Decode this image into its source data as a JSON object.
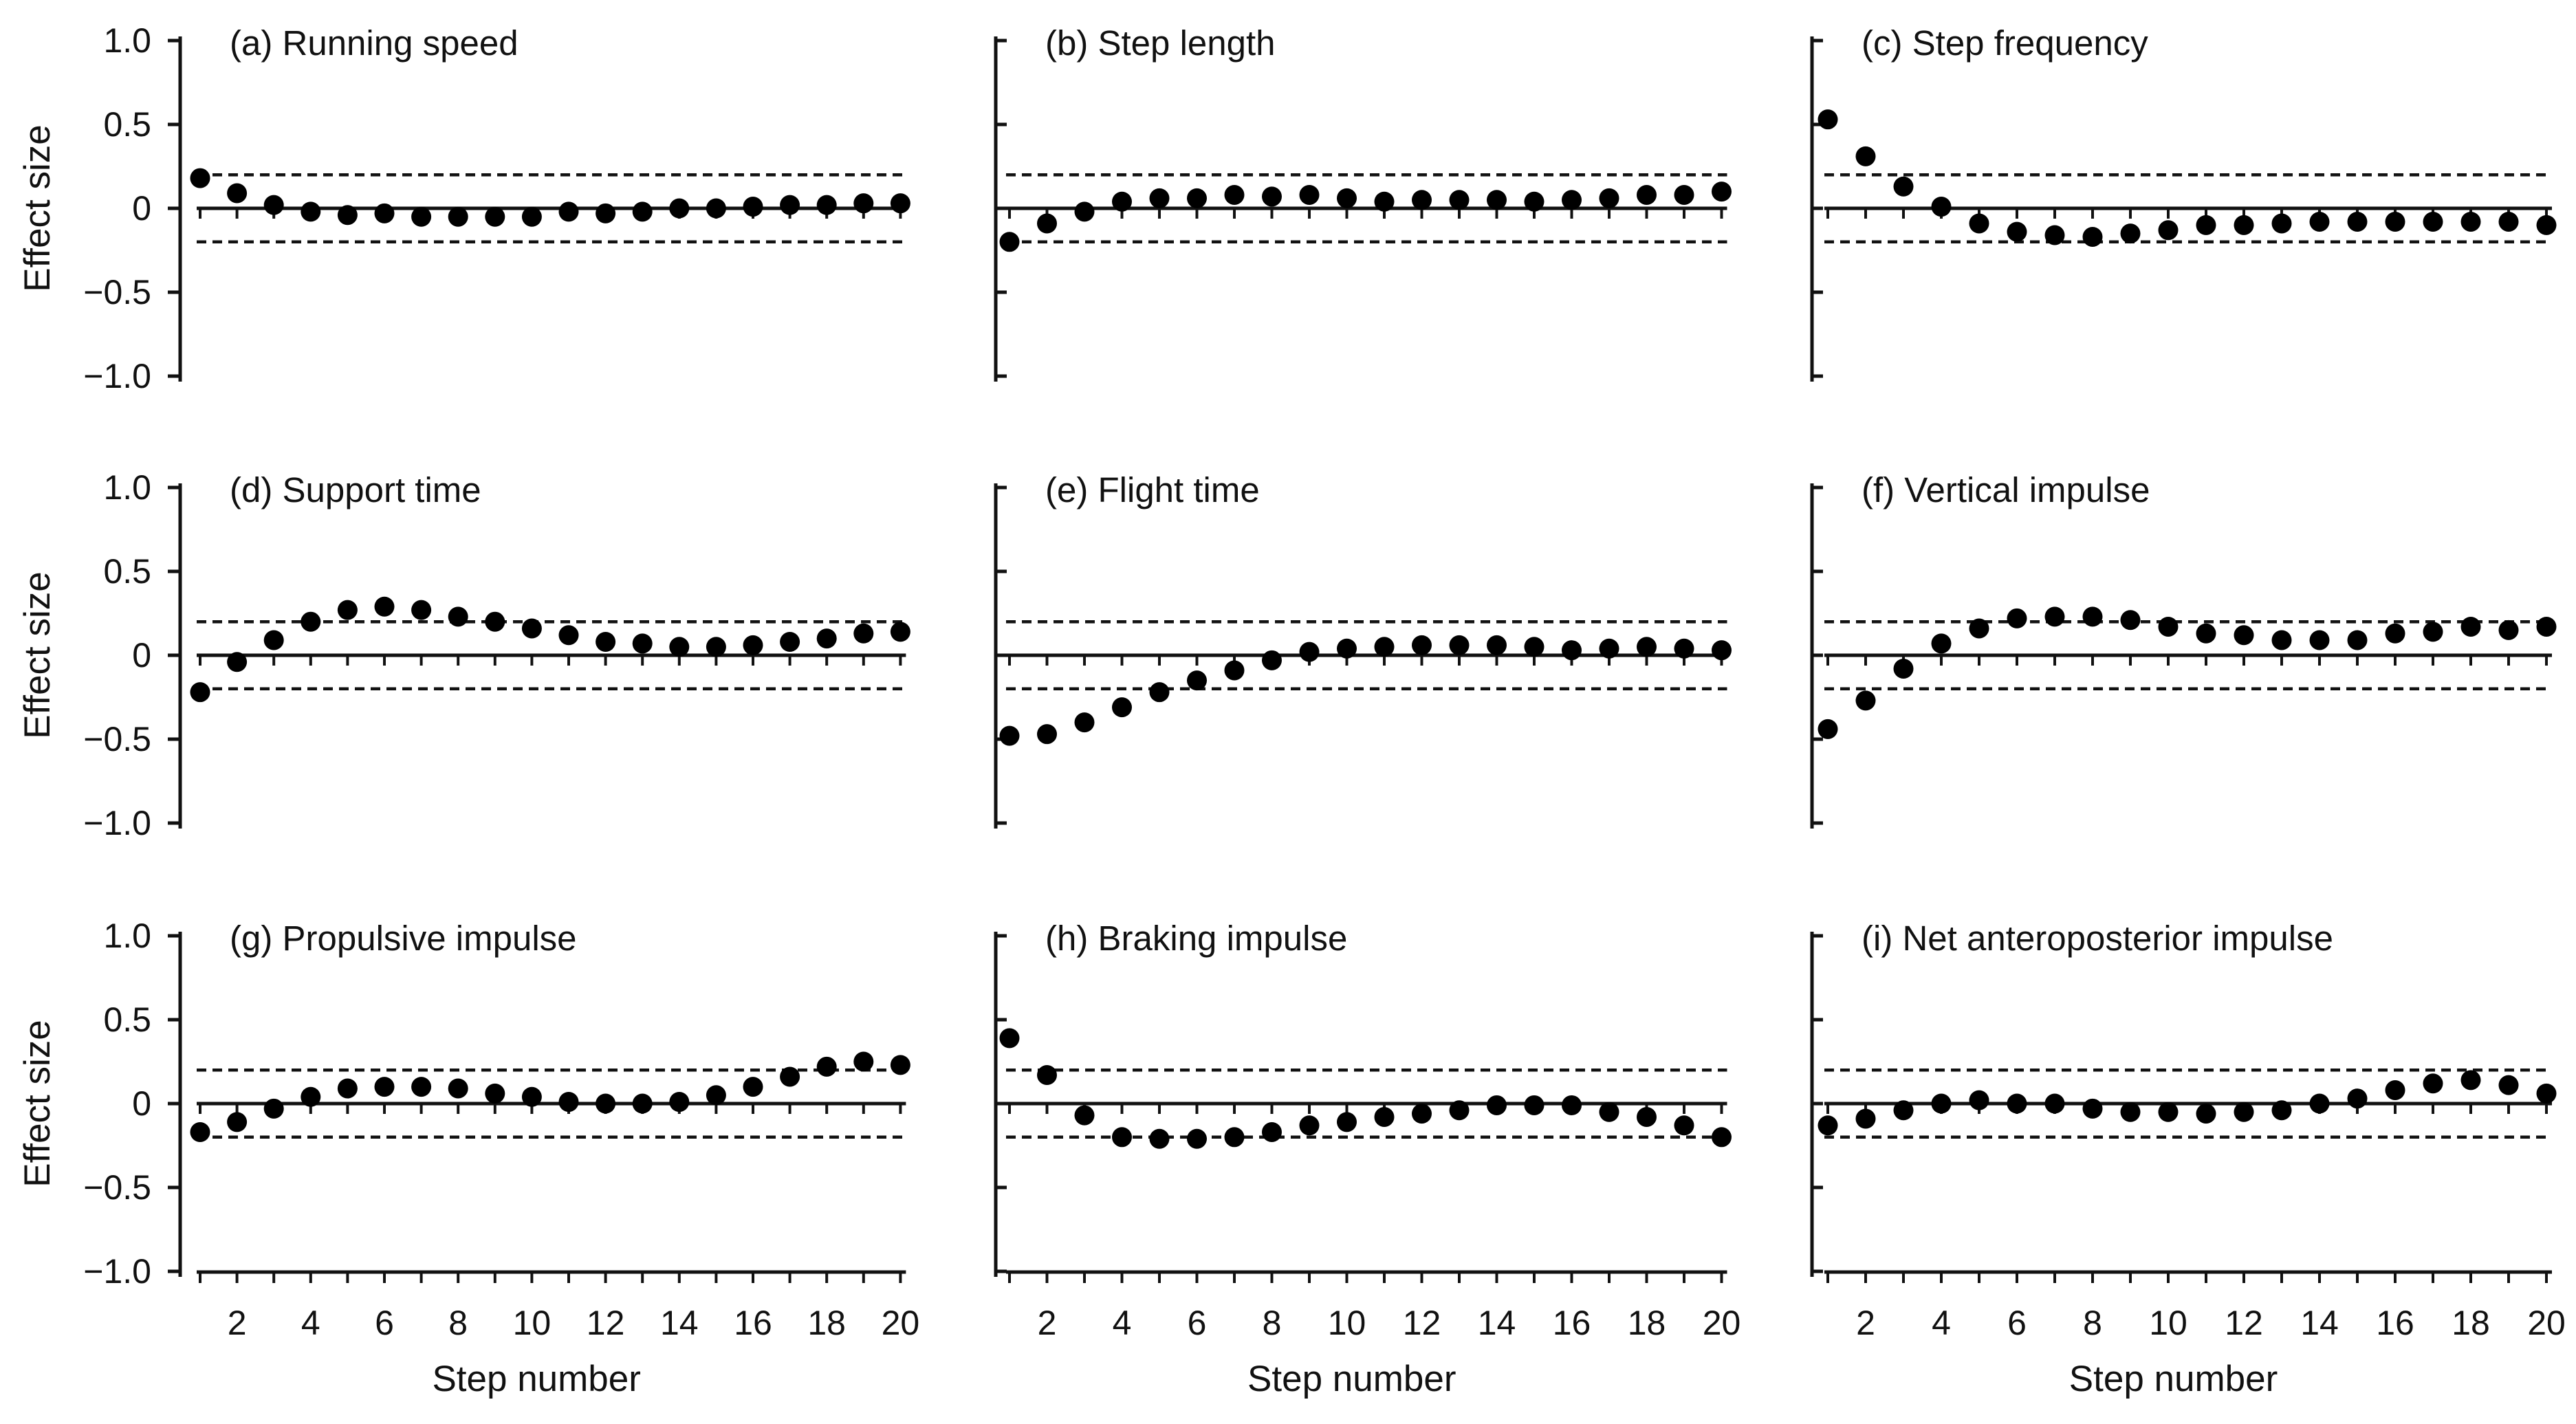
{
  "figure": {
    "y_axis_label": "Effect size",
    "x_axis_label": "Step number",
    "background_color": "#ffffff",
    "ink_color": "#111111",
    "point_color": "#000000"
  },
  "chart_data": {
    "type": "scatter",
    "layout": "3x3-grid",
    "xlabel": "Step number",
    "ylabel": "Effect size",
    "x": [
      1,
      2,
      3,
      4,
      5,
      6,
      7,
      8,
      9,
      10,
      11,
      12,
      13,
      14,
      15,
      16,
      17,
      18,
      19,
      20
    ],
    "ylim": [
      -1.0,
      1.0
    ],
    "y_tick_values": [
      1.0,
      0.5,
      0,
      -0.5,
      -1.0
    ],
    "y_tick_labels": [
      "1.0",
      "0.5",
      "0",
      "−0.5",
      "−1.0"
    ],
    "x_tick_labels_shown": [
      "2",
      "4",
      "6",
      "8",
      "10",
      "12",
      "14",
      "16",
      "18",
      "20"
    ],
    "reference_lines": {
      "solid_zero_line": 0,
      "dashed_lines": [
        0.2,
        -0.2
      ]
    },
    "grid": "off",
    "legend": "none",
    "panels": [
      {
        "id": "a",
        "title": "(a) Running speed",
        "row": 0,
        "col": 0,
        "show_y_tick_labels": true,
        "show_x_tick_labels": false,
        "values": [
          0.18,
          0.09,
          0.02,
          -0.02,
          -0.04,
          -0.03,
          -0.05,
          -0.05,
          -0.05,
          -0.05,
          -0.02,
          -0.03,
          -0.02,
          0.0,
          0.0,
          0.01,
          0.02,
          0.02,
          0.03,
          0.03
        ]
      },
      {
        "id": "b",
        "title": "(b) Step length",
        "row": 0,
        "col": 1,
        "show_y_tick_labels": false,
        "show_x_tick_labels": false,
        "values": [
          -0.2,
          -0.09,
          -0.02,
          0.04,
          0.06,
          0.06,
          0.08,
          0.07,
          0.08,
          0.06,
          0.04,
          0.05,
          0.05,
          0.05,
          0.04,
          0.05,
          0.06,
          0.08,
          0.08,
          0.1
        ]
      },
      {
        "id": "c",
        "title": "(c) Step frequency",
        "row": 0,
        "col": 2,
        "show_y_tick_labels": false,
        "show_x_tick_labels": false,
        "values": [
          0.53,
          0.31,
          0.13,
          0.01,
          -0.09,
          -0.14,
          -0.16,
          -0.17,
          -0.15,
          -0.13,
          -0.1,
          -0.1,
          -0.09,
          -0.08,
          -0.08,
          -0.08,
          -0.08,
          -0.08,
          -0.08,
          -0.1
        ]
      },
      {
        "id": "d",
        "title": "(d) Support time",
        "row": 1,
        "col": 0,
        "show_y_tick_labels": true,
        "show_x_tick_labels": false,
        "values": [
          -0.22,
          -0.04,
          0.09,
          0.2,
          0.27,
          0.29,
          0.27,
          0.23,
          0.2,
          0.16,
          0.12,
          0.08,
          0.07,
          0.05,
          0.05,
          0.06,
          0.08,
          0.1,
          0.13,
          0.14
        ]
      },
      {
        "id": "e",
        "title": "(e) Flight time",
        "row": 1,
        "col": 1,
        "show_y_tick_labels": false,
        "show_x_tick_labels": false,
        "values": [
          -0.48,
          -0.47,
          -0.4,
          -0.31,
          -0.22,
          -0.15,
          -0.09,
          -0.03,
          0.02,
          0.04,
          0.05,
          0.06,
          0.06,
          0.06,
          0.05,
          0.03,
          0.04,
          0.05,
          0.04,
          0.03
        ]
      },
      {
        "id": "f",
        "title": "(f) Vertical impulse",
        "row": 1,
        "col": 2,
        "show_y_tick_labels": false,
        "show_x_tick_labels": false,
        "values": [
          -0.44,
          -0.27,
          -0.08,
          0.07,
          0.16,
          0.22,
          0.23,
          0.23,
          0.21,
          0.17,
          0.13,
          0.12,
          0.09,
          0.09,
          0.09,
          0.13,
          0.14,
          0.17,
          0.15,
          0.17
        ]
      },
      {
        "id": "g",
        "title": "(g) Propulsive impulse",
        "row": 2,
        "col": 0,
        "show_y_tick_labels": true,
        "show_x_tick_labels": true,
        "values": [
          -0.17,
          -0.11,
          -0.03,
          0.04,
          0.09,
          0.1,
          0.1,
          0.09,
          0.06,
          0.04,
          0.01,
          0.0,
          0.0,
          0.01,
          0.05,
          0.1,
          0.16,
          0.22,
          0.25,
          0.23
        ]
      },
      {
        "id": "h",
        "title": "(h) Braking impulse",
        "row": 2,
        "col": 1,
        "show_y_tick_labels": false,
        "show_x_tick_labels": true,
        "values": [
          0.39,
          0.17,
          -0.07,
          -0.2,
          -0.21,
          -0.21,
          -0.2,
          -0.17,
          -0.13,
          -0.11,
          -0.08,
          -0.06,
          -0.04,
          -0.01,
          -0.01,
          -0.01,
          -0.05,
          -0.08,
          -0.13,
          -0.2
        ]
      },
      {
        "id": "i",
        "title": "(i) Net anteroposterior impulse",
        "row": 2,
        "col": 2,
        "show_y_tick_labels": false,
        "show_x_tick_labels": true,
        "values": [
          -0.13,
          -0.09,
          -0.04,
          0.0,
          0.02,
          0.0,
          0.0,
          -0.03,
          -0.05,
          -0.05,
          -0.06,
          -0.05,
          -0.04,
          0.0,
          0.03,
          0.08,
          0.12,
          0.14,
          0.11,
          0.06
        ]
      }
    ]
  }
}
